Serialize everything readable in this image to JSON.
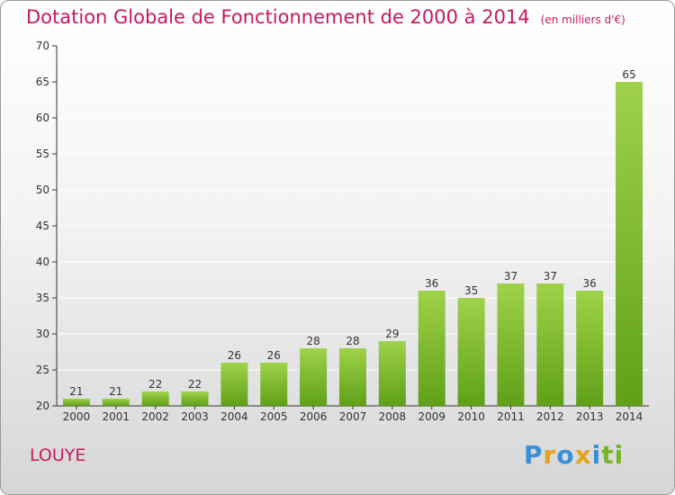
{
  "title": "Dotation Globale de Fonctionnement de 2000 à 2014",
  "unit_note": "(en milliers d'€)",
  "commune": "LOUYE",
  "logo": {
    "letters": [
      "P",
      "r",
      "o",
      "x",
      "i",
      "t",
      "i"
    ],
    "colors": [
      "#3a8fd6",
      "#e6a21a",
      "#3a8fd6",
      "#e6a21a",
      "#3a8fd6",
      "#7ab32a",
      "#7ab32a"
    ]
  },
  "colors": {
    "title": "#c8185d",
    "bar_light": "#9fd24a",
    "bar_dark": "#5fa018",
    "axis": "#333333",
    "grid": "#ffffff"
  },
  "chart_data": {
    "type": "bar",
    "title": "Dotation Globale de Fonctionnement de 2000 à 2014",
    "xlabel": "",
    "ylabel": "",
    "categories": [
      "2000",
      "2001",
      "2002",
      "2003",
      "2004",
      "2005",
      "2006",
      "2007",
      "2008",
      "2009",
      "2010",
      "2011",
      "2012",
      "2013",
      "2014"
    ],
    "values": [
      21,
      21,
      22,
      22,
      26,
      26,
      28,
      28,
      29,
      36,
      35,
      37,
      37,
      36,
      65
    ],
    "ylim": [
      20,
      70
    ],
    "yticks": [
      20,
      25,
      30,
      35,
      40,
      45,
      50,
      55,
      60,
      65,
      70
    ],
    "grid": true
  }
}
